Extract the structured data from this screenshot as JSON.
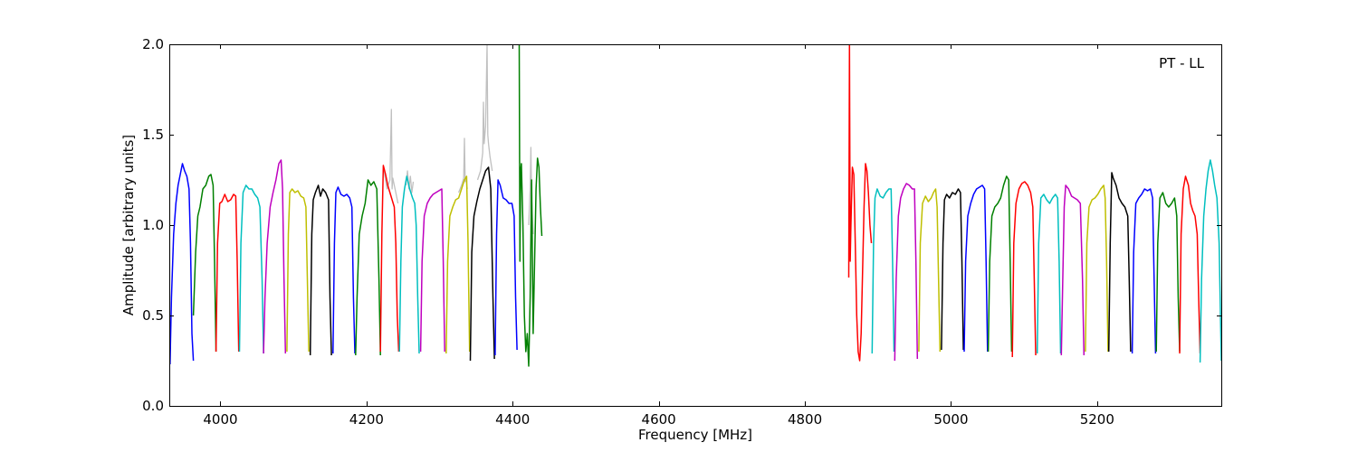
{
  "chart_data": {
    "type": "line",
    "title": "",
    "xlabel": "Frequency [MHz]",
    "ylabel": "Amplitude [arbitrary units]",
    "xlim": [
      3930,
      5370
    ],
    "ylim": [
      0.0,
      2.0
    ],
    "xticks": [
      4000,
      4200,
      4400,
      4600,
      4800,
      5000,
      5200
    ],
    "xtick_labels": [
      "4000",
      "4200",
      "4400",
      "4600",
      "4800",
      "5000",
      "5200"
    ],
    "yticks": [
      0.0,
      0.5,
      1.0,
      1.5,
      2.0
    ],
    "ytick_labels": [
      "0.0",
      "0.5",
      "1.0",
      "1.5",
      "2.0"
    ],
    "grid": false,
    "annotation": "PT - LL",
    "colors": {
      "blue": "#0000ff",
      "green": "#008000",
      "red": "#ff0000",
      "cyan": "#00bfbf",
      "magenta": "#bf00bf",
      "olive": "#bfbf00",
      "black": "#000000",
      "gray": "#c0c0c0"
    },
    "series": [
      {
        "color": "blue",
        "x": [
          3931,
          3933,
          3936,
          3939,
          3942,
          3945,
          3948,
          3951,
          3954,
          3957,
          3959,
          3961,
          3963
        ],
        "y": [
          0.23,
          0.6,
          0.95,
          1.12,
          1.22,
          1.28,
          1.34,
          1.3,
          1.27,
          1.2,
          0.9,
          0.4,
          0.25
        ]
      },
      {
        "color": "green",
        "x": [
          3963,
          3966,
          3969,
          3972,
          3976,
          3980,
          3984,
          3987,
          3990,
          3992,
          3994
        ],
        "y": [
          0.5,
          0.85,
          1.05,
          1.1,
          1.2,
          1.22,
          1.27,
          1.28,
          1.22,
          0.8,
          0.3
        ]
      },
      {
        "color": "red",
        "x": [
          3994,
          3996,
          3999,
          4002,
          4006,
          4010,
          4014,
          4018,
          4021,
          4023,
          4025
        ],
        "y": [
          0.3,
          0.9,
          1.12,
          1.13,
          1.17,
          1.13,
          1.14,
          1.17,
          1.16,
          0.8,
          0.3
        ]
      },
      {
        "color": "cyan",
        "x": [
          4026,
          4028,
          4031,
          4035,
          4039,
          4043,
          4047,
          4051,
          4054,
          4057,
          4059
        ],
        "y": [
          0.3,
          0.9,
          1.18,
          1.22,
          1.2,
          1.2,
          1.17,
          1.15,
          1.1,
          0.7,
          0.29
        ]
      },
      {
        "color": "magenta",
        "x": [
          4059,
          4061,
          4064,
          4068,
          4072,
          4076,
          4080,
          4083,
          4085,
          4087,
          4089
        ],
        "y": [
          0.29,
          0.6,
          0.9,
          1.1,
          1.18,
          1.25,
          1.34,
          1.36,
          1.2,
          0.7,
          0.29
        ]
      },
      {
        "color": "olive",
        "x": [
          4091,
          4093,
          4095,
          4098,
          4102,
          4106,
          4110,
          4114,
          4117,
          4119,
          4121
        ],
        "y": [
          0.3,
          0.95,
          1.18,
          1.2,
          1.18,
          1.19,
          1.16,
          1.15,
          1.1,
          0.7,
          0.3
        ]
      },
      {
        "color": "black",
        "x": [
          4123,
          4125,
          4127,
          4130,
          4134,
          4137,
          4140,
          4144,
          4148,
          4150,
          4152
        ],
        "y": [
          0.28,
          0.95,
          1.14,
          1.18,
          1.22,
          1.16,
          1.2,
          1.18,
          1.14,
          0.6,
          0.28
        ]
      },
      {
        "color": "blue",
        "x": [
          4154,
          4156,
          4158,
          4161,
          4165,
          4169,
          4173,
          4177,
          4180,
          4182,
          4184
        ],
        "y": [
          0.29,
          0.9,
          1.18,
          1.21,
          1.17,
          1.16,
          1.17,
          1.15,
          1.1,
          0.6,
          0.29
        ]
      },
      {
        "color": "green",
        "x": [
          4185,
          4187,
          4190,
          4194,
          4198,
          4202,
          4206,
          4210,
          4214,
          4217,
          4219
        ],
        "y": [
          0.28,
          0.6,
          0.95,
          1.05,
          1.12,
          1.25,
          1.22,
          1.24,
          1.2,
          0.7,
          0.28
        ]
      },
      {
        "color": "gray",
        "x": [
          4224,
          4228,
          4232,
          4234,
          4235,
          4236,
          4238,
          4240,
          4243
        ],
        "y": [
          1.3,
          1.2,
          1.25,
          1.64,
          1.2,
          1.26,
          1.22,
          1.18,
          1.12
        ]
      },
      {
        "color": "red",
        "x": [
          4219,
          4221,
          4223,
          4226,
          4229,
          4232,
          4235,
          4238,
          4240,
          4242,
          4244
        ],
        "y": [
          0.3,
          0.95,
          1.33,
          1.28,
          1.22,
          1.18,
          1.14,
          1.1,
          0.9,
          0.5,
          0.3
        ]
      },
      {
        "color": "gray",
        "x": [
          4254,
          4256,
          4258,
          4260,
          4262,
          4264
        ],
        "y": [
          1.22,
          1.3,
          1.2,
          1.27,
          1.18,
          1.24
        ]
      },
      {
        "color": "cyan",
        "x": [
          4245,
          4247,
          4249,
          4252,
          4255,
          4259,
          4263,
          4266,
          4268,
          4270,
          4272
        ],
        "y": [
          0.3,
          0.8,
          1.1,
          1.2,
          1.27,
          1.2,
          1.15,
          1.12,
          1.0,
          0.6,
          0.29
        ]
      },
      {
        "color": "magenta",
        "x": [
          4274,
          4276,
          4279,
          4283,
          4287,
          4291,
          4295,
          4299,
          4303,
          4305,
          4307
        ],
        "y": [
          0.3,
          0.8,
          1.05,
          1.12,
          1.15,
          1.17,
          1.18,
          1.19,
          1.2,
          0.8,
          0.3
        ]
      },
      {
        "color": "gray",
        "x": [
          4326,
          4330,
          4333,
          4334,
          4335,
          4336,
          4338
        ],
        "y": [
          1.18,
          1.22,
          1.26,
          1.48,
          1.24,
          1.26,
          1.2
        ]
      },
      {
        "color": "olive",
        "x": [
          4309,
          4311,
          4314,
          4318,
          4322,
          4326,
          4330,
          4334,
          4337,
          4339,
          4341
        ],
        "y": [
          0.29,
          0.8,
          1.05,
          1.1,
          1.14,
          1.15,
          1.2,
          1.25,
          1.27,
          0.9,
          0.3
        ]
      },
      {
        "color": "gray",
        "x": [
          4352,
          4356,
          4359,
          4360,
          4361,
          4363,
          4365,
          4366,
          4367,
          4369,
          4372
        ],
        "y": [
          1.25,
          1.3,
          1.4,
          1.68,
          1.45,
          1.55,
          2.0,
          1.5,
          1.45,
          1.38,
          1.3
        ]
      },
      {
        "color": "black",
        "x": [
          4342,
          4344,
          4347,
          4351,
          4355,
          4359,
          4363,
          4367,
          4370,
          4373,
          4375
        ],
        "y": [
          0.25,
          0.85,
          1.05,
          1.13,
          1.2,
          1.25,
          1.3,
          1.32,
          1.2,
          0.6,
          0.26
        ]
      },
      {
        "color": "blue",
        "x": [
          4376,
          4378,
          4380,
          4383,
          4387,
          4391,
          4395,
          4399,
          4402,
          4404,
          4406
        ],
        "y": [
          0.28,
          0.95,
          1.25,
          1.22,
          1.15,
          1.14,
          1.12,
          1.12,
          1.05,
          0.6,
          0.31
        ]
      },
      {
        "color": "gray",
        "x": [
          4422,
          4424,
          4425,
          4426,
          4428
        ],
        "y": [
          1.0,
          1.2,
          1.43,
          1.15,
          0.95
        ]
      },
      {
        "color": "green",
        "x": [
          4409,
          4410,
          4411,
          4412,
          4414,
          4416,
          4418,
          4420,
          4422,
          4424,
          4426,
          4428,
          4430,
          4432,
          4434,
          4436,
          4438,
          4440
        ],
        "y": [
          2.0,
          0.8,
          1.3,
          1.34,
          1.0,
          0.5,
          0.3,
          0.4,
          0.22,
          0.6,
          1.25,
          0.4,
          0.8,
          1.2,
          1.37,
          1.32,
          1.1,
          0.94
        ]
      },
      {
        "color": "red",
        "x": [
          4860,
          4861,
          4862,
          4863,
          4865,
          4867,
          4869,
          4871,
          4873,
          4875,
          4877,
          4879,
          4881,
          4883,
          4885,
          4887,
          4889,
          4891
        ],
        "y": [
          0.71,
          2.0,
          0.8,
          1.0,
          1.32,
          1.28,
          0.9,
          0.5,
          0.3,
          0.25,
          0.4,
          0.75,
          1.1,
          1.34,
          1.3,
          1.18,
          1.0,
          0.9
        ]
      },
      {
        "color": "cyan",
        "x": [
          4892,
          4894,
          4896,
          4899,
          4903,
          4907,
          4911,
          4915,
          4918,
          4920,
          4922
        ],
        "y": [
          0.29,
          0.9,
          1.15,
          1.2,
          1.16,
          1.15,
          1.18,
          1.2,
          1.2,
          0.8,
          0.3
        ]
      },
      {
        "color": "magenta",
        "x": [
          4923,
          4925,
          4928,
          4931,
          4935,
          4939,
          4943,
          4947,
          4950,
          4952,
          4954
        ],
        "y": [
          0.25,
          0.7,
          1.05,
          1.15,
          1.2,
          1.23,
          1.22,
          1.2,
          1.2,
          0.8,
          0.26
        ]
      },
      {
        "color": "olive",
        "x": [
          4956,
          4958,
          4961,
          4965,
          4969,
          4973,
          4976,
          4979,
          4981,
          4983,
          4985
        ],
        "y": [
          0.3,
          0.9,
          1.12,
          1.16,
          1.13,
          1.15,
          1.18,
          1.2,
          1.1,
          0.7,
          0.3
        ]
      },
      {
        "color": "black",
        "x": [
          4987,
          4989,
          4991,
          4994,
          4998,
          5002,
          5006,
          5010,
          5013,
          5015,
          5017
        ],
        "y": [
          0.31,
          0.9,
          1.14,
          1.17,
          1.15,
          1.18,
          1.17,
          1.2,
          1.18,
          0.8,
          0.31
        ]
      },
      {
        "color": "blue",
        "x": [
          5018,
          5020,
          5023,
          5027,
          5031,
          5035,
          5039,
          5043,
          5046,
          5048,
          5050
        ],
        "y": [
          0.3,
          0.8,
          1.05,
          1.12,
          1.17,
          1.2,
          1.21,
          1.22,
          1.2,
          0.8,
          0.3
        ]
      },
      {
        "color": "green",
        "x": [
          5051,
          5053,
          5056,
          5060,
          5064,
          5068,
          5072,
          5076,
          5079,
          5081,
          5083
        ],
        "y": [
          0.3,
          0.8,
          1.05,
          1.1,
          1.12,
          1.15,
          1.22,
          1.27,
          1.25,
          0.8,
          0.3
        ]
      },
      {
        "color": "red",
        "x": [
          5084,
          5086,
          5089,
          5093,
          5097,
          5101,
          5105,
          5109,
          5112,
          5114,
          5116
        ],
        "y": [
          0.27,
          0.9,
          1.12,
          1.2,
          1.23,
          1.24,
          1.22,
          1.18,
          1.1,
          0.7,
          0.28
        ]
      },
      {
        "color": "cyan",
        "x": [
          5118,
          5120,
          5123,
          5127,
          5131,
          5135,
          5139,
          5143,
          5146,
          5148,
          5150
        ],
        "y": [
          0.29,
          0.9,
          1.15,
          1.17,
          1.14,
          1.12,
          1.15,
          1.17,
          1.15,
          0.8,
          0.29
        ]
      },
      {
        "color": "magenta",
        "x": [
          5151,
          5153,
          5155,
          5157,
          5161,
          5165,
          5169,
          5173,
          5177,
          5180,
          5182
        ],
        "y": [
          0.28,
          0.7,
          1.1,
          1.22,
          1.2,
          1.16,
          1.15,
          1.14,
          1.12,
          0.7,
          0.28
        ]
      },
      {
        "color": "olive",
        "x": [
          5184,
          5186,
          5189,
          5193,
          5197,
          5201,
          5205,
          5209,
          5211,
          5213,
          5215
        ],
        "y": [
          0.3,
          0.9,
          1.1,
          1.14,
          1.15,
          1.17,
          1.2,
          1.22,
          1.15,
          0.8,
          0.3
        ]
      },
      {
        "color": "black",
        "x": [
          5216,
          5218,
          5220,
          5222,
          5226,
          5230,
          5234,
          5238,
          5242,
          5244,
          5246
        ],
        "y": [
          0.3,
          0.9,
          1.29,
          1.26,
          1.22,
          1.15,
          1.12,
          1.1,
          1.05,
          0.7,
          0.3
        ]
      },
      {
        "color": "blue",
        "x": [
          5248,
          5250,
          5253,
          5257,
          5261,
          5265,
          5269,
          5273,
          5276,
          5278,
          5280
        ],
        "y": [
          0.29,
          0.85,
          1.12,
          1.15,
          1.17,
          1.2,
          1.19,
          1.2,
          1.15,
          0.7,
          0.29
        ]
      },
      {
        "color": "green",
        "x": [
          5281,
          5283,
          5286,
          5290,
          5294,
          5298,
          5302,
          5306,
          5309,
          5311,
          5313
        ],
        "y": [
          0.3,
          0.9,
          1.15,
          1.18,
          1.12,
          1.1,
          1.12,
          1.15,
          1.05,
          0.6,
          0.3
        ]
      },
      {
        "color": "red",
        "x": [
          5313,
          5315,
          5318,
          5321,
          5325,
          5328,
          5331,
          5334,
          5337,
          5339,
          5341
        ],
        "y": [
          0.29,
          0.95,
          1.2,
          1.27,
          1.22,
          1.12,
          1.08,
          1.05,
          0.95,
          0.6,
          0.29
        ]
      },
      {
        "color": "cyan",
        "x": [
          5341,
          5343,
          5346,
          5349,
          5352,
          5355,
          5358,
          5361,
          5364,
          5367,
          5370
        ],
        "y": [
          0.24,
          0.7,
          1.05,
          1.2,
          1.3,
          1.36,
          1.3,
          1.22,
          1.15,
          0.9,
          0.25
        ]
      }
    ]
  }
}
